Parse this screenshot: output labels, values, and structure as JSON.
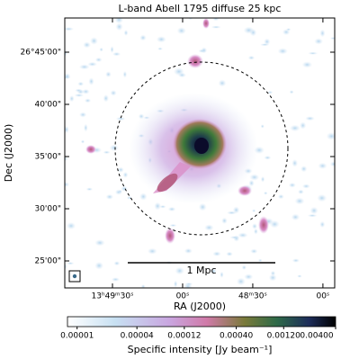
{
  "chart_data": {
    "type": "image",
    "title": "L-band Abell 1795 diffuse 25 kpc",
    "xlabel": "RA (J2000)",
    "ylabel": "Dec (J2000)",
    "xlim": [
      207.46,
      206.979
    ],
    "ylim": [
      26.37357,
      26.8046
    ],
    "xticks": [
      {
        "value": 207.375,
        "label": "13ʰ49ᵐ30ˢ"
      },
      {
        "value": 207.25,
        "label": "00ˢ"
      },
      {
        "value": 207.125,
        "label": "48ᵐ30ˢ"
      },
      {
        "value": 207.0,
        "label": "00ˢ"
      }
    ],
    "yticks": [
      {
        "value": 26.75,
        "label": "26°45'00\""
      },
      {
        "value": 26.666667,
        "label": "40'00\""
      },
      {
        "value": 26.583333,
        "label": "35'00\""
      },
      {
        "value": 26.5,
        "label": "30'00\""
      },
      {
        "value": 26.416667,
        "label": "25'00\""
      }
    ],
    "annotation": "1 Mpc",
    "colorbar": {
      "label": "Specific intensity [Jy beam⁻¹]",
      "scale": "log",
      "lim": [
        8e-06,
        0.004
      ],
      "ticks": [
        {
          "value": 1e-05,
          "label": "0.00001"
        },
        {
          "value": 4e-05,
          "label": "0.00004"
        },
        {
          "value": 0.00012,
          "label": "0.00012"
        },
        {
          "value": 0.0004,
          "label": "0.00040"
        },
        {
          "value": 0.0012,
          "label": "0.00120"
        },
        {
          "value": 0.004,
          "label": "0.00400"
        }
      ]
    }
  }
}
